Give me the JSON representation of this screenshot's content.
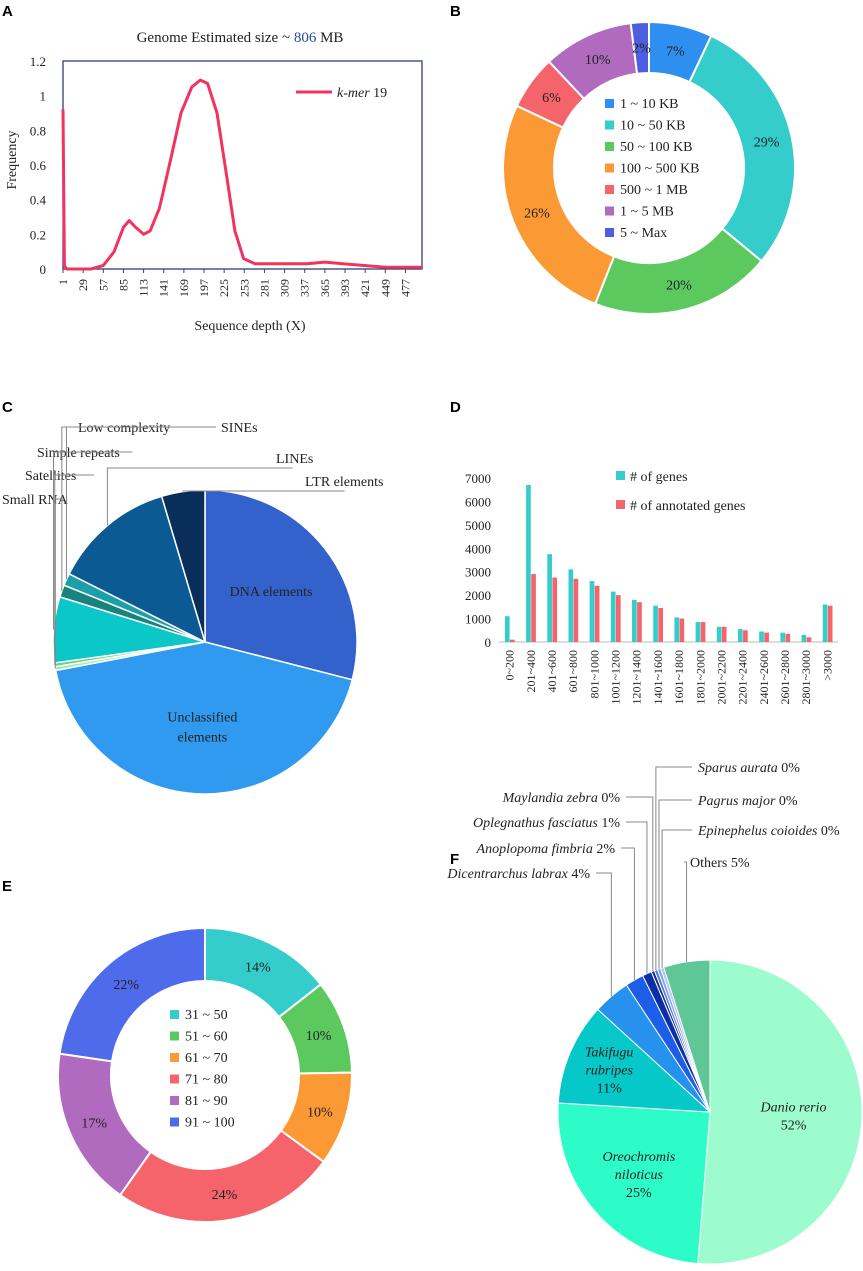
{
  "panels": {
    "A": {
      "letter": "A",
      "title_prefix": "Genome Estimated size ~ ",
      "title_value": "806",
      "title_suffix": " MB",
      "title_value_color": "#1f4e96",
      "chart_data": {
        "type": "line",
        "title": "Genome Estimated size ~ 806 MB",
        "xlabel": "Sequence depth (X)",
        "ylabel": "Frequency",
        "xlim": [
          1,
          500
        ],
        "ylim": [
          0,
          1.2
        ],
        "yticks": [
          "0",
          "0.2",
          "0.4",
          "0.6",
          "0.8",
          "1",
          "1.2"
        ],
        "xticks": [
          "1",
          "29",
          "57",
          "85",
          "113",
          "141",
          "169",
          "197",
          "225",
          "253",
          "281",
          "309",
          "337",
          "365",
          "393",
          "421",
          "449",
          "477"
        ],
        "series": [
          {
            "name_italic": "k-mer",
            "name_rest": " 19",
            "color": "#f0345e",
            "points": [
              [
                1,
                0.92
              ],
              [
                3,
                0.02
              ],
              [
                6,
                0.0
              ],
              [
                40,
                0.0
              ],
              [
                57,
                0.02
              ],
              [
                72,
                0.1
              ],
              [
                85,
                0.24
              ],
              [
                93,
                0.28
              ],
              [
                102,
                0.24
              ],
              [
                113,
                0.2
              ],
              [
                122,
                0.22
              ],
              [
                135,
                0.35
              ],
              [
                150,
                0.62
              ],
              [
                165,
                0.9
              ],
              [
                180,
                1.05
              ],
              [
                192,
                1.09
              ],
              [
                202,
                1.07
              ],
              [
                215,
                0.9
              ],
              [
                228,
                0.55
              ],
              [
                240,
                0.22
              ],
              [
                252,
                0.06
              ],
              [
                268,
                0.03
              ],
              [
                300,
                0.03
              ],
              [
                340,
                0.03
              ],
              [
                365,
                0.04
              ],
              [
                390,
                0.03
              ],
              [
                420,
                0.02
              ],
              [
                450,
                0.01
              ],
              [
                477,
                0.01
              ],
              [
                500,
                0.01
              ]
            ]
          }
        ]
      }
    },
    "B": {
      "letter": "B",
      "chart_data": {
        "type": "pie",
        "donut": true,
        "categories": [
          "1 ~ 10 KB",
          "10 ~ 50 KB",
          "50 ~ 100 KB",
          "100 ~ 500 KB",
          "500 ~ 1 MB",
          "1 ~ 5 MB",
          "5 ~ Max"
        ],
        "values": [
          7,
          29,
          20,
          26,
          6,
          10,
          2
        ],
        "labels": [
          "7%",
          "29%",
          "20%",
          "26%",
          "6%",
          "10%",
          "2%"
        ],
        "colors": [
          "#2f8ff0",
          "#34cdcb",
          "#5cc95f",
          "#fb9a35",
          "#f4646a",
          "#b06bbf",
          "#4d5fe0"
        ]
      }
    },
    "C": {
      "letter": "C",
      "chart_data": {
        "type": "pie",
        "categories": [
          "DNA elements",
          "Unclassified elements",
          "Small RNA",
          "Satellites",
          "Simple repeats",
          "Low complexity",
          "SINEs",
          "LINEs",
          "LTR elements"
        ],
        "values": [
          29.0,
          43.0,
          0.4,
          0.4,
          7.0,
          1.3,
          1.3,
          13.0,
          4.6
        ],
        "colors": [
          "#3462cc",
          "#2f9af0",
          "#9fe7c4",
          "#5fd87a",
          "#0bc7c8",
          "#18827f",
          "#1b9fa8",
          "#0b5a94",
          "#0a2e5a"
        ],
        "label_display": [
          "DNA elements",
          "Unclassified|elements",
          "Small RNA",
          "Satellites",
          "Simple repeats",
          "Low complexity",
          "SINEs",
          "LINEs",
          "LTR elements"
        ]
      }
    },
    "D": {
      "letter": "D",
      "chart_data": {
        "type": "bar",
        "categories": [
          "0~200",
          "201~400",
          "401~600",
          "601~800",
          "801~1000",
          "1001~1200",
          "1201~1400",
          "1401~1600",
          "1601~1800",
          "1801~2000",
          "2001~2200",
          "2201~2400",
          "2401~2600",
          "2601~2800",
          "2801~3000",
          ">3000"
        ],
        "ylim": [
          0,
          7000
        ],
        "yticks": [
          "0",
          "1000",
          "2000",
          "3000",
          "4000",
          "5000",
          "6000",
          "7000"
        ],
        "series": [
          {
            "name": "# of genes",
            "color": "#34cdcb",
            "values": [
              1100,
              6700,
              3750,
              3100,
              2600,
              2150,
              1800,
              1550,
              1050,
              850,
              650,
              550,
              450,
              400,
              300,
              1600
            ]
          },
          {
            "name": "# of annotated genes",
            "color": "#f4646a",
            "values": [
              100,
              2900,
              2750,
              2700,
              2400,
              2000,
              1700,
              1450,
              1000,
              850,
              650,
              500,
              400,
              350,
              200,
              1550
            ]
          }
        ]
      }
    },
    "E": {
      "letter": "E",
      "chart_data": {
        "type": "pie",
        "donut": true,
        "categories": [
          "31 ~ 50",
          "51 ~ 60",
          "61 ~ 70",
          "71 ~ 80",
          "81 ~ 90",
          "91 ~ 100"
        ],
        "values": [
          14,
          10,
          10,
          24,
          17,
          22
        ],
        "labels": [
          "14%",
          "10%",
          "10%",
          "24%",
          "17%",
          "22%"
        ],
        "colors": [
          "#34cdcb",
          "#5cc95f",
          "#fb9a35",
          "#f4646a",
          "#b06bbf",
          "#4d6bea"
        ]
      }
    },
    "F": {
      "letter": "F",
      "chart_data": {
        "type": "pie",
        "categories": [
          "Danio rerio",
          "Oreochromis niloticus",
          "Takifugu rubripes",
          "Dicentrarchus labrax",
          "Anoplopoma fimbria",
          "Oplegnathus fasciatus",
          "Maylandia zebra",
          "Sparus aurata",
          "Pagrus major",
          "Epinephelus coioides",
          "Others"
        ],
        "values": [
          52,
          25,
          11,
          4,
          2,
          1,
          0.35,
          0.35,
          0.35,
          0.35,
          5
        ],
        "labels": [
          "52%",
          "25%",
          "11%",
          "4%",
          "2%",
          "1%",
          "0%",
          "0%",
          "0%",
          "0%",
          "5%"
        ],
        "colors": [
          "#9dfccd",
          "#2efcc8",
          "#07c8c8",
          "#2792ee",
          "#1c5ee8",
          "#0b2fa6",
          "#1a2f8a",
          "#4c7ee0",
          "#7fa0ea",
          "#b3c4ee",
          "#5fc796"
        ]
      }
    }
  }
}
